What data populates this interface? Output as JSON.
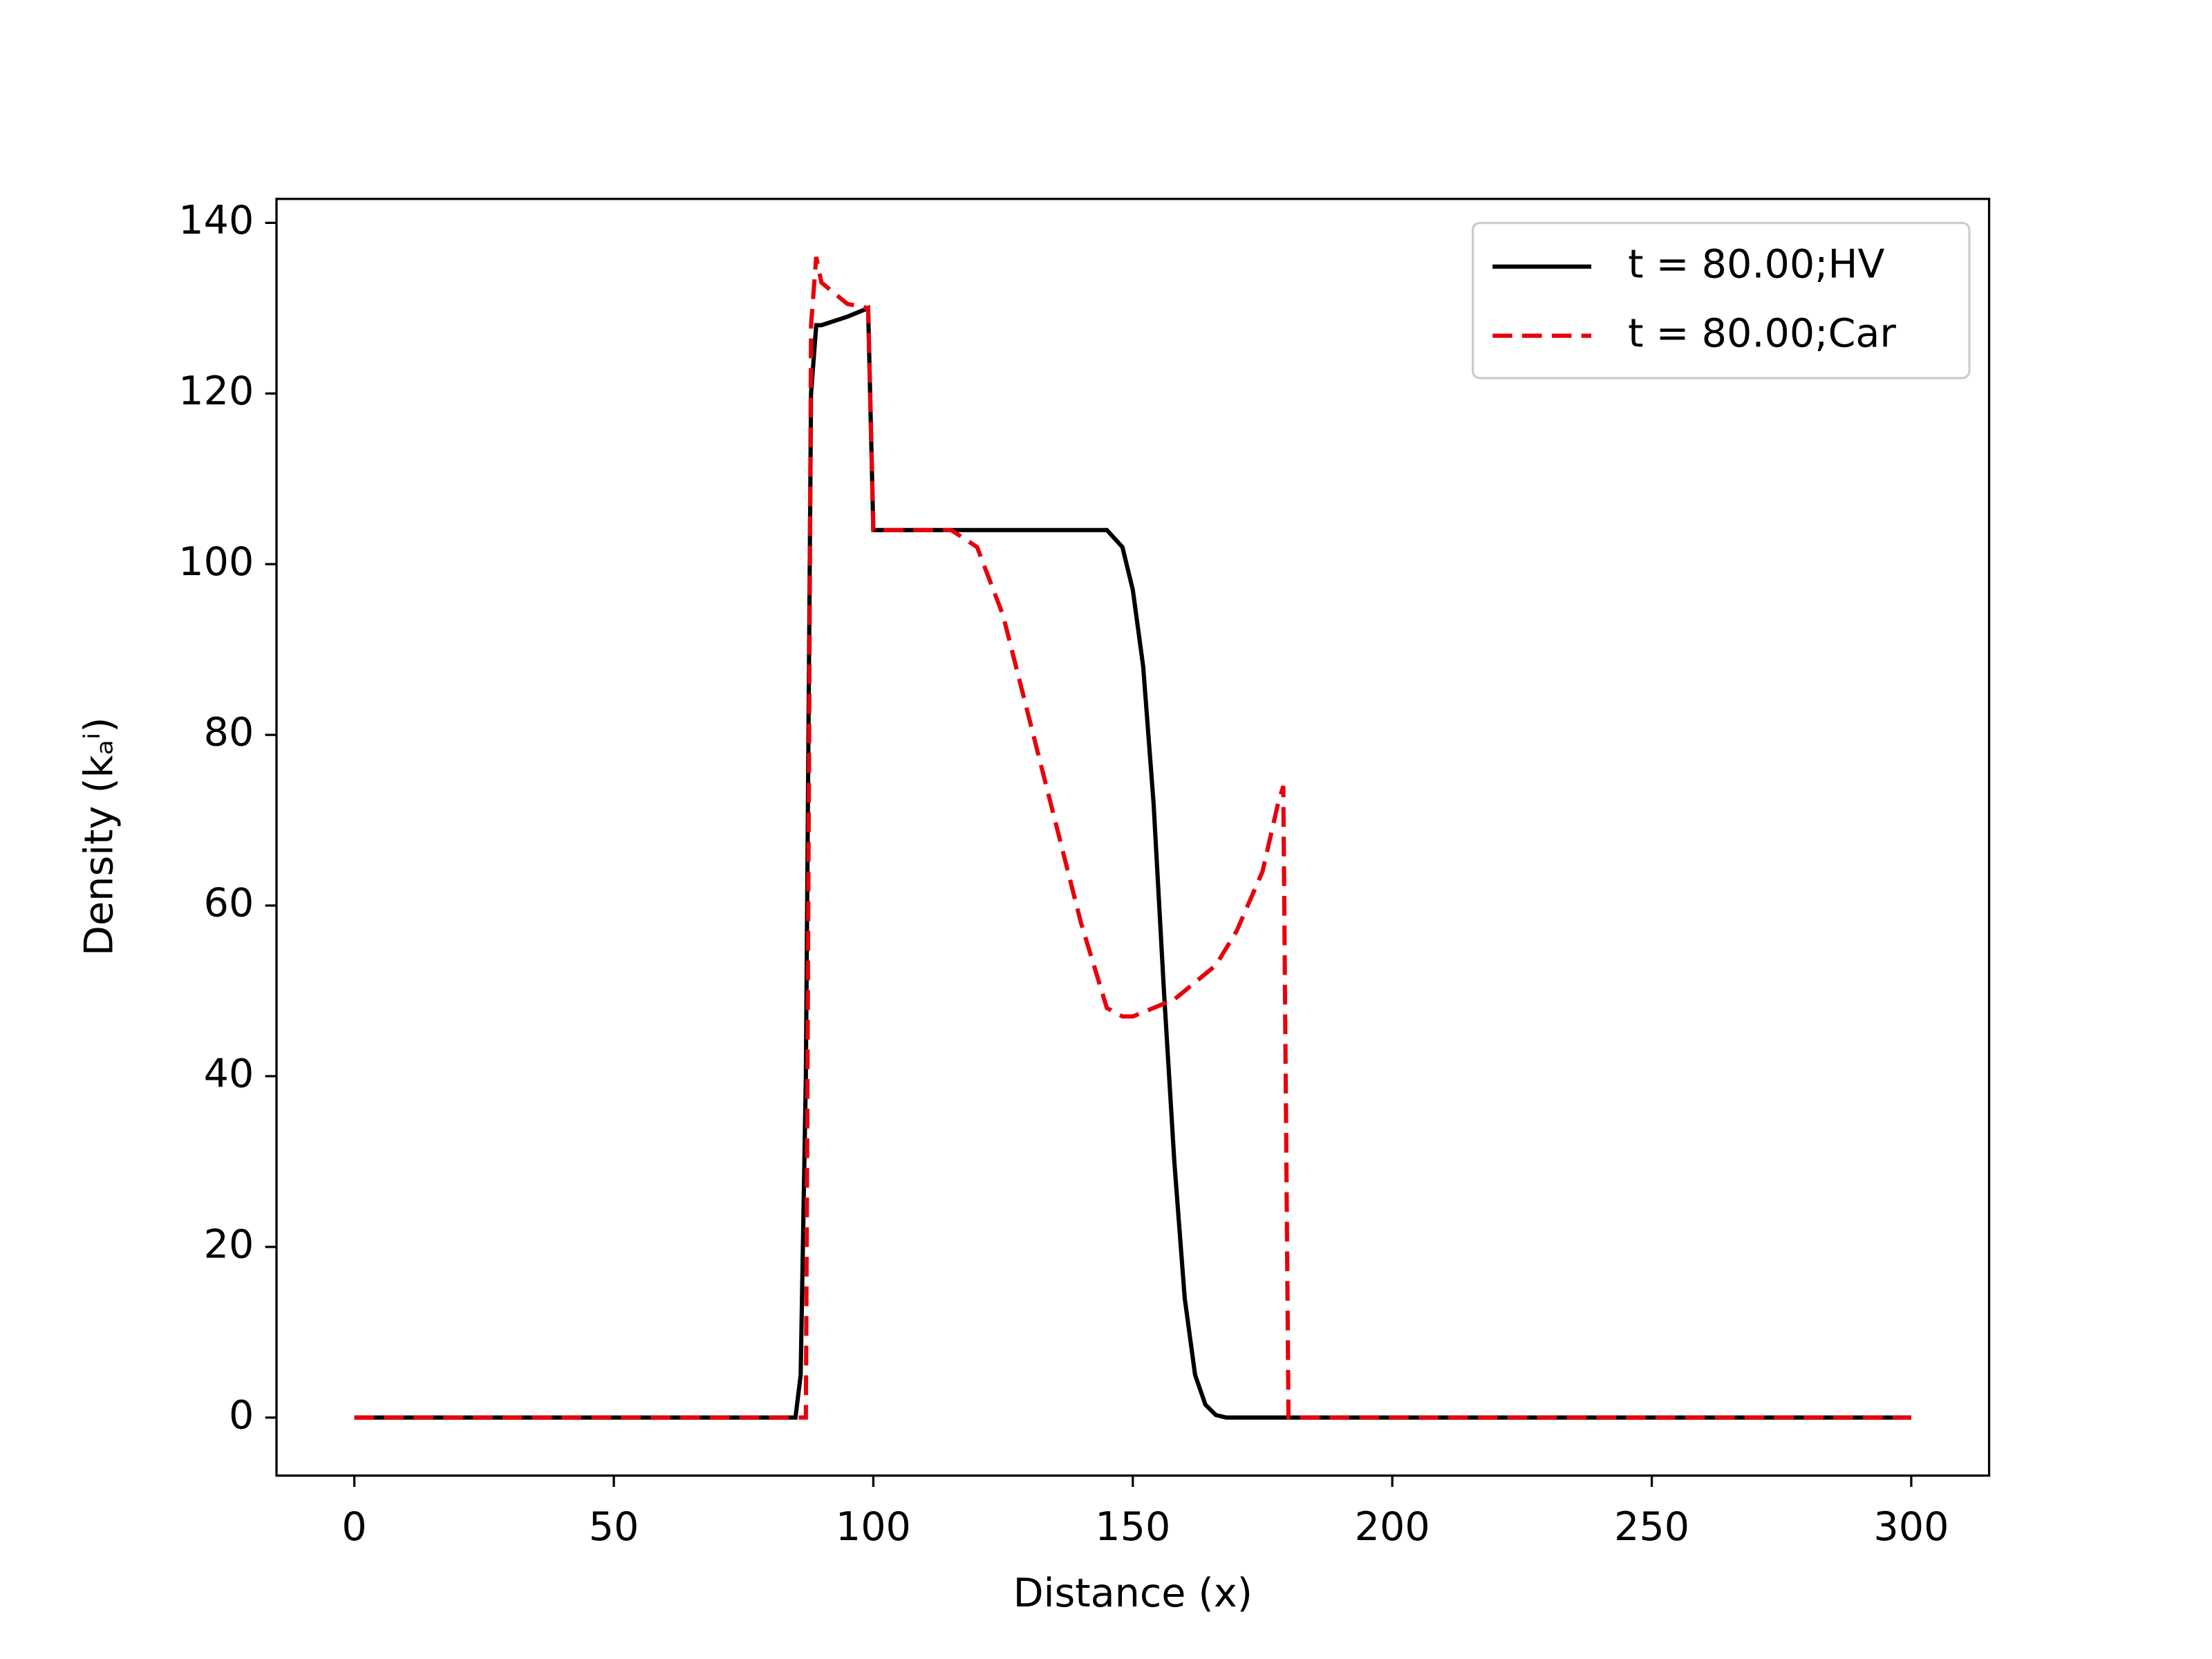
{
  "chart_data": {
    "type": "line",
    "xlabel": "Distance (x)",
    "ylabel": "Density (kₐⁱ)",
    "x": [
      0,
      85,
      86,
      87,
      88,
      89,
      90,
      95,
      99,
      100,
      101,
      110,
      115,
      120,
      125,
      130,
      135,
      140,
      145,
      148,
      150,
      152,
      154,
      156,
      158,
      160,
      162,
      164,
      166,
      168,
      170,
      175,
      178,
      179,
      180,
      181,
      300
    ],
    "series": [
      {
        "name": "t = 80.00;HV",
        "color": "#000000",
        "dash": "solid",
        "values": [
          0,
          0,
          5,
          40,
          120,
          128,
          128,
          129,
          130,
          104,
          104,
          104,
          104,
          104,
          104,
          104,
          104,
          104,
          104,
          102,
          97,
          88,
          72,
          50,
          30,
          14,
          5,
          1.5,
          0.3,
          0,
          0,
          0,
          0,
          0,
          0,
          0,
          0
        ]
      },
      {
        "name": "t = 80.00;Car",
        "color": "#e8000b",
        "dash": "dashed",
        "values": [
          0,
          0,
          0,
          0,
          128,
          136,
          133,
          130.5,
          130,
          104,
          104,
          104,
          104,
          102,
          94,
          82,
          70,
          58,
          48,
          47,
          47,
          47.5,
          48,
          48.5,
          49,
          50,
          51,
          52,
          53,
          55,
          57,
          64,
          72,
          74,
          0,
          0,
          0
        ]
      }
    ],
    "xlim": [
      -15,
      315
    ],
    "xticks": [
      0,
      50,
      100,
      150,
      200,
      250,
      300
    ],
    "ylim": [
      -6.8,
      142.8
    ],
    "yticks": [
      0,
      20,
      40,
      60,
      80,
      100,
      120,
      140
    ],
    "grid": false,
    "legend": "upper right"
  }
}
